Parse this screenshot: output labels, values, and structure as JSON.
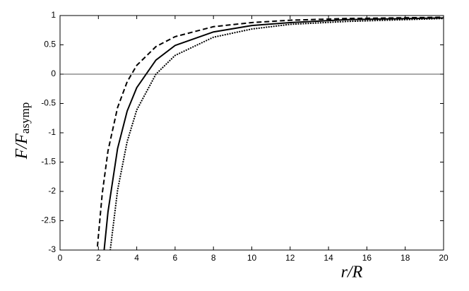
{
  "chart_data": {
    "type": "line",
    "xlabel": "r/R",
    "ylabel": "F/F",
    "ylabel_sub": "asymp",
    "xlim": [
      0,
      20
    ],
    "xticks": [
      0,
      2,
      4,
      6,
      8,
      10,
      12,
      14,
      16,
      18,
      20
    ],
    "ylim": [
      -3,
      1
    ],
    "yticks": [
      -3,
      -2.5,
      -2,
      -1.5,
      -1,
      -0.5,
      0,
      0.5,
      1
    ],
    "reference_line": 0,
    "series": [
      {
        "style": "dashed",
        "color": "#000000",
        "x": [
          1.95,
          2.2,
          2.5,
          3,
          3.5,
          4,
          5,
          6,
          8,
          10,
          12,
          15,
          20
        ],
        "values": [
          -2.94,
          -2.04,
          -1.31,
          -0.57,
          -0.13,
          0.15,
          0.47,
          0.64,
          0.81,
          0.88,
          0.92,
          0.95,
          0.97
        ]
      },
      {
        "style": "solid",
        "color": "#000000",
        "x": [
          2.3,
          2.5,
          3,
          3.5,
          4,
          5,
          6,
          8,
          10,
          12,
          15,
          20
        ],
        "values": [
          -3.0,
          -2.35,
          -1.27,
          -0.63,
          -0.23,
          0.24,
          0.49,
          0.72,
          0.83,
          0.88,
          0.93,
          0.96
        ]
      },
      {
        "style": "dotted",
        "color": "#000000",
        "x": [
          2.6,
          3,
          3.5,
          4,
          5,
          6,
          8,
          10,
          12,
          15,
          20
        ],
        "values": [
          -3.05,
          -1.98,
          -1.15,
          -0.61,
          0,
          0.32,
          0.63,
          0.77,
          0.85,
          0.9,
          0.95
        ]
      }
    ]
  }
}
